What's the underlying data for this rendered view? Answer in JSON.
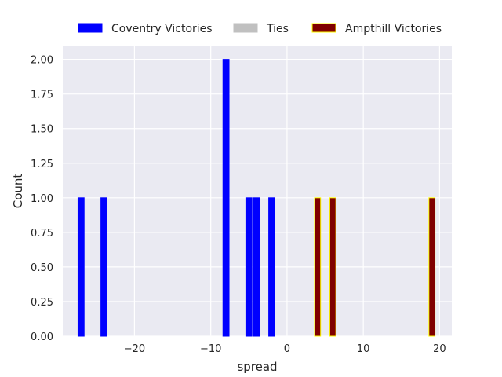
{
  "chart_data": {
    "type": "bar",
    "title": "",
    "xlabel": "spread",
    "ylabel": "Count",
    "xlim": [
      -29.4,
      21.6
    ],
    "ylim": [
      0,
      2.1
    ],
    "x_ticks": [
      -20,
      -10,
      0,
      10,
      20
    ],
    "x_tick_labels": [
      "−20",
      "−10",
      "0",
      "10",
      "20"
    ],
    "y_ticks": [
      0.0,
      0.25,
      0.5,
      0.75,
      1.0,
      1.25,
      1.5,
      1.75,
      2.0
    ],
    "y_tick_labels": [
      "0.00",
      "0.25",
      "0.50",
      "0.75",
      "1.00",
      "1.25",
      "1.50",
      "1.75",
      "2.00"
    ],
    "grid": true,
    "legend_position": "top",
    "series": [
      {
        "name": "Coventry Victories",
        "color": "#0000ff",
        "edge_color": "#0000ff",
        "points": [
          {
            "x": -27,
            "y": 1
          },
          {
            "x": -24,
            "y": 1
          },
          {
            "x": -8,
            "y": 2
          },
          {
            "x": -5,
            "y": 1
          },
          {
            "x": -4,
            "y": 1
          },
          {
            "x": -2,
            "y": 1
          }
        ]
      },
      {
        "name": "Ties",
        "color": "#c0c0c0",
        "edge_color": "#c0c0c0",
        "points": []
      },
      {
        "name": "Ampthill Victories",
        "color": "#800000",
        "edge_color": "#ffff00",
        "points": [
          {
            "x": 4,
            "y": 1
          },
          {
            "x": 6,
            "y": 1
          },
          {
            "x": 19,
            "y": 1
          }
        ]
      }
    ]
  }
}
